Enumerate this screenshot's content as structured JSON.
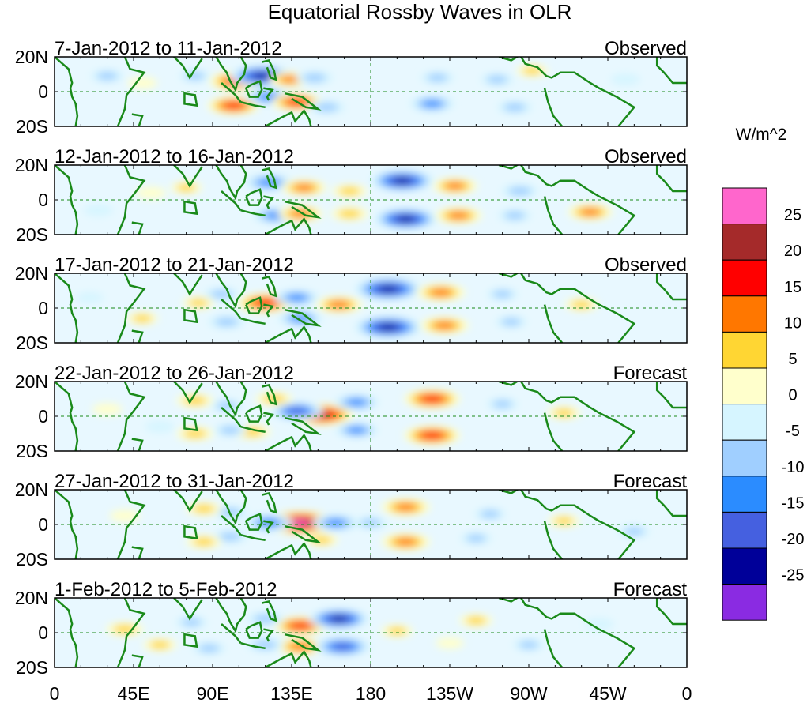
{
  "chart_data": {
    "type": "heatmap",
    "title": "Equatorial Rossby Waves in OLR",
    "variable": "OLR anomaly",
    "units": "W/m^2",
    "x_tick_labels": [
      "0",
      "45E",
      "90E",
      "135E",
      "180",
      "135W",
      "90W",
      "45W",
      "0"
    ],
    "x_ticks_deg": [
      0,
      45,
      90,
      135,
      180,
      225,
      270,
      315,
      360
    ],
    "y_tick_labels": [
      "20N",
      "0",
      "20S"
    ],
    "y_ticks_deg": [
      20,
      0,
      -20
    ],
    "xlim_deg": [
      0,
      360
    ],
    "ylim_deg": [
      -20,
      20
    ],
    "colorbar": {
      "label": "W/m^2",
      "tick_labels": [
        "25",
        "20",
        "15",
        "10",
        "5",
        "0",
        "-5",
        "-10",
        "-15",
        "-20",
        "-25"
      ],
      "levels": [
        25,
        20,
        15,
        10,
        5,
        0,
        -5,
        -10,
        -15,
        -20,
        -25
      ],
      "colors": [
        "#ff66cc",
        "#a52a2a",
        "#ff0000",
        "#ff7700",
        "#ffd633",
        "#ffffcc",
        "#d6f5ff",
        "#a0cfff",
        "#2b8cff",
        "#4560e0",
        "#000099",
        "#8a2be2"
      ]
    },
    "panels": [
      {
        "date_range": "7-Jan-2012 to 11-Jan-2012",
        "status": "Observed",
        "anomalies": [
          {
            "lon": 104,
            "lat": 6,
            "value": 18
          },
          {
            "lon": 102,
            "lat": -8,
            "value": 16
          },
          {
            "lon": 118,
            "lat": 9,
            "value": -22
          },
          {
            "lon": 122,
            "lat": -3,
            "value": -14
          },
          {
            "lon": 134,
            "lat": 7,
            "value": 10
          },
          {
            "lon": 138,
            "lat": -6,
            "value": 15
          },
          {
            "lon": 148,
            "lat": 8,
            "value": -8
          },
          {
            "lon": 155,
            "lat": -9,
            "value": -8
          },
          {
            "lon": 215,
            "lat": -7,
            "value": -12
          },
          {
            "lon": 218,
            "lat": 8,
            "value": -6
          },
          {
            "lon": 252,
            "lat": 7,
            "value": -6
          },
          {
            "lon": 262,
            "lat": -9,
            "value": -7
          },
          {
            "lon": 272,
            "lat": 12,
            "value": 5
          },
          {
            "lon": 30,
            "lat": 9,
            "value": -6
          },
          {
            "lon": 50,
            "lat": 5,
            "value": 4
          },
          {
            "lon": 80,
            "lat": 9,
            "value": -5
          },
          {
            "lon": 325,
            "lat": 7,
            "value": -4
          }
        ]
      },
      {
        "date_range": "12-Jan-2012 to 16-Jan-2012",
        "status": "Observed",
        "anomalies": [
          {
            "lon": 122,
            "lat": 10,
            "value": -14
          },
          {
            "lon": 126,
            "lat": -9,
            "value": -13
          },
          {
            "lon": 142,
            "lat": 7,
            "value": 12
          },
          {
            "lon": 140,
            "lat": -8,
            "value": 12
          },
          {
            "lon": 198,
            "lat": 11,
            "value": -22
          },
          {
            "lon": 200,
            "lat": -11,
            "value": -22
          },
          {
            "lon": 228,
            "lat": 8,
            "value": 12
          },
          {
            "lon": 230,
            "lat": -9,
            "value": 13
          },
          {
            "lon": 168,
            "lat": 5,
            "value": 7
          },
          {
            "lon": 168,
            "lat": -8,
            "value": 8
          },
          {
            "lon": 265,
            "lat": 5,
            "value": -8
          },
          {
            "lon": 262,
            "lat": -9,
            "value": -6
          },
          {
            "lon": 305,
            "lat": -7,
            "value": 12
          },
          {
            "lon": 75,
            "lat": 7,
            "value": 5
          },
          {
            "lon": 55,
            "lat": 4,
            "value": 4
          },
          {
            "lon": 25,
            "lat": -6,
            "value": -4
          }
        ]
      },
      {
        "date_range": "17-Jan-2012 to 21-Jan-2012",
        "status": "Observed",
        "anomalies": [
          {
            "lon": 120,
            "lat": 3,
            "value": 18
          },
          {
            "lon": 138,
            "lat": 6,
            "value": -12
          },
          {
            "lon": 140,
            "lat": -6,
            "value": -12
          },
          {
            "lon": 162,
            "lat": 2,
            "value": 13
          },
          {
            "lon": 190,
            "lat": 11,
            "value": -24
          },
          {
            "lon": 190,
            "lat": -11,
            "value": -24
          },
          {
            "lon": 220,
            "lat": 9,
            "value": 14
          },
          {
            "lon": 222,
            "lat": -10,
            "value": 14
          },
          {
            "lon": 95,
            "lat": 8,
            "value": -7
          },
          {
            "lon": 98,
            "lat": -8,
            "value": -8
          },
          {
            "lon": 255,
            "lat": 8,
            "value": -5
          },
          {
            "lon": 260,
            "lat": -8,
            "value": -5
          },
          {
            "lon": 300,
            "lat": 2,
            "value": 6
          },
          {
            "lon": 82,
            "lat": 3,
            "value": 5
          },
          {
            "lon": 50,
            "lat": -6,
            "value": 5
          },
          {
            "lon": 20,
            "lat": 6,
            "value": -3
          }
        ]
      },
      {
        "date_range": "22-Jan-2012 to 26-Jan-2012",
        "status": "Forecast",
        "anomalies": [
          {
            "lon": 152,
            "lat": 1,
            "value": 22
          },
          {
            "lon": 138,
            "lat": 3,
            "value": -16
          },
          {
            "lon": 172,
            "lat": 8,
            "value": -12
          },
          {
            "lon": 172,
            "lat": -8,
            "value": -11
          },
          {
            "lon": 215,
            "lat": 10,
            "value": 18
          },
          {
            "lon": 215,
            "lat": -11,
            "value": 18
          },
          {
            "lon": 125,
            "lat": 10,
            "value": 8
          },
          {
            "lon": 112,
            "lat": -9,
            "value": 9
          },
          {
            "lon": 98,
            "lat": 6,
            "value": -6
          },
          {
            "lon": 100,
            "lat": -8,
            "value": -6
          },
          {
            "lon": 80,
            "lat": 9,
            "value": 8
          },
          {
            "lon": 80,
            "lat": -10,
            "value": 8
          },
          {
            "lon": 255,
            "lat": 7,
            "value": -5
          },
          {
            "lon": 290,
            "lat": 2,
            "value": 6
          },
          {
            "lon": 30,
            "lat": 4,
            "value": 4
          },
          {
            "lon": 60,
            "lat": -6,
            "value": -4
          }
        ]
      },
      {
        "date_range": "27-Jan-2012 to 31-Jan-2012",
        "status": "Forecast",
        "anomalies": [
          {
            "lon": 140,
            "lat": 1,
            "value": 26
          },
          {
            "lon": 122,
            "lat": 1,
            "value": -14
          },
          {
            "lon": 160,
            "lat": 1,
            "value": -13
          },
          {
            "lon": 152,
            "lat": -9,
            "value": 6
          },
          {
            "lon": 200,
            "lat": 10,
            "value": 14
          },
          {
            "lon": 200,
            "lat": -10,
            "value": 14
          },
          {
            "lon": 180,
            "lat": 1,
            "value": -6
          },
          {
            "lon": 100,
            "lat": 7,
            "value": -7
          },
          {
            "lon": 100,
            "lat": -7,
            "value": -7
          },
          {
            "lon": 85,
            "lat": 9,
            "value": 7
          },
          {
            "lon": 85,
            "lat": -10,
            "value": 7
          },
          {
            "lon": 248,
            "lat": 6,
            "value": -5
          },
          {
            "lon": 240,
            "lat": -8,
            "value": -5
          },
          {
            "lon": 290,
            "lat": 2,
            "value": 5
          },
          {
            "lon": 330,
            "lat": -4,
            "value": -5
          },
          {
            "lon": 40,
            "lat": 5,
            "value": 4
          }
        ]
      },
      {
        "date_range": "1-Feb-2012 to 5-Feb-2012",
        "status": "Forecast",
        "anomalies": [
          {
            "lon": 140,
            "lat": 4,
            "value": 16
          },
          {
            "lon": 140,
            "lat": -8,
            "value": 14
          },
          {
            "lon": 162,
            "lat": 8,
            "value": -20
          },
          {
            "lon": 164,
            "lat": -8,
            "value": -18
          },
          {
            "lon": 120,
            "lat": 8,
            "value": -8
          },
          {
            "lon": 120,
            "lat": -7,
            "value": -8
          },
          {
            "lon": 195,
            "lat": 1,
            "value": 5
          },
          {
            "lon": 40,
            "lat": 2,
            "value": 8
          },
          {
            "lon": 60,
            "lat": -7,
            "value": 6
          },
          {
            "lon": 78,
            "lat": 6,
            "value": -5
          },
          {
            "lon": 88,
            "lat": -9,
            "value": -6
          },
          {
            "lon": 240,
            "lat": 7,
            "value": 6
          },
          {
            "lon": 270,
            "lat": -7,
            "value": -5
          },
          {
            "lon": 310,
            "lat": 5,
            "value": -4
          },
          {
            "lon": 225,
            "lat": -6,
            "value": 3
          }
        ]
      }
    ]
  }
}
